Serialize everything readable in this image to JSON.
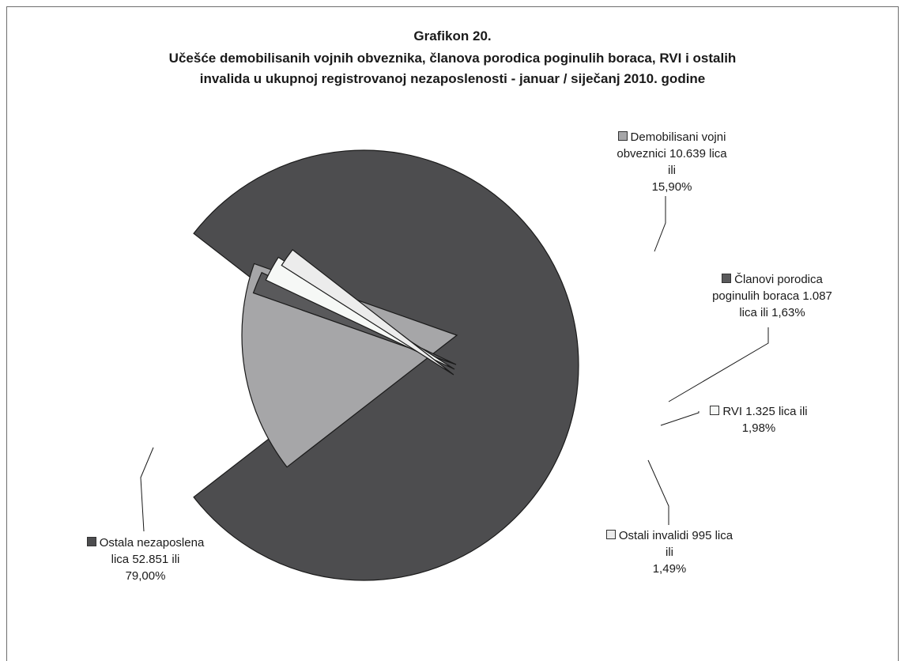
{
  "title": {
    "line1": "Grafikon 20.",
    "line2": "Učešće demobilisanih vojnih obveznika, članova porodica poginulih boraca, RVI i ostalih",
    "line3": "invalida u ukupnoj registrovanoj nezaposlenosti - januar / siječanj 2010. godine"
  },
  "chart_data": {
    "type": "pie",
    "title": "Grafikon 20. Učešće demobilisanih vojnih obveznika, članova porodica poginulih boraca, RVI i ostalih invalida u ukupnoj registrovanoj nezaposlenosti - januar / siječanj 2010. godine",
    "exploded": true,
    "slices": [
      {
        "name": "Ostala nezaposlena lica",
        "count": 52851,
        "percent": 79.0,
        "color": "#4d4d4f"
      },
      {
        "name": "Demobilisani vojni obveznici",
        "count": 10639,
        "percent": 15.9,
        "color": "#a6a6a8"
      },
      {
        "name": "Članovi porodica poginulih boraca",
        "count": 1087,
        "percent": 1.63,
        "color": "#59595b"
      },
      {
        "name": "RVI",
        "count": 1325,
        "percent": 1.98,
        "color": "#f6f8f6"
      },
      {
        "name": "Ostali invalidi",
        "count": 995,
        "percent": 1.49,
        "color": "#ececec"
      }
    ]
  },
  "labels": {
    "demob": {
      "l1": "Demobilisani vojni",
      "l2": "obveznici 10.639 lica",
      "l3": "ili",
      "l4": "15,90%"
    },
    "clan": {
      "l1": "Članovi porodica",
      "l2": "poginulih boraca 1.087",
      "l3": "lica ili 1,63%"
    },
    "rvi": {
      "l1": "RVI 1.325 lica ili",
      "l2": "1,98%"
    },
    "ostali_inv": {
      "l1": "Ostali invalidi 995 lica",
      "l2": "ili",
      "l3": "1,49%"
    },
    "ostala": {
      "l1": "Ostala nezaposlena",
      "l2": "lica 52.851  ili",
      "l3": "79,00%"
    }
  }
}
